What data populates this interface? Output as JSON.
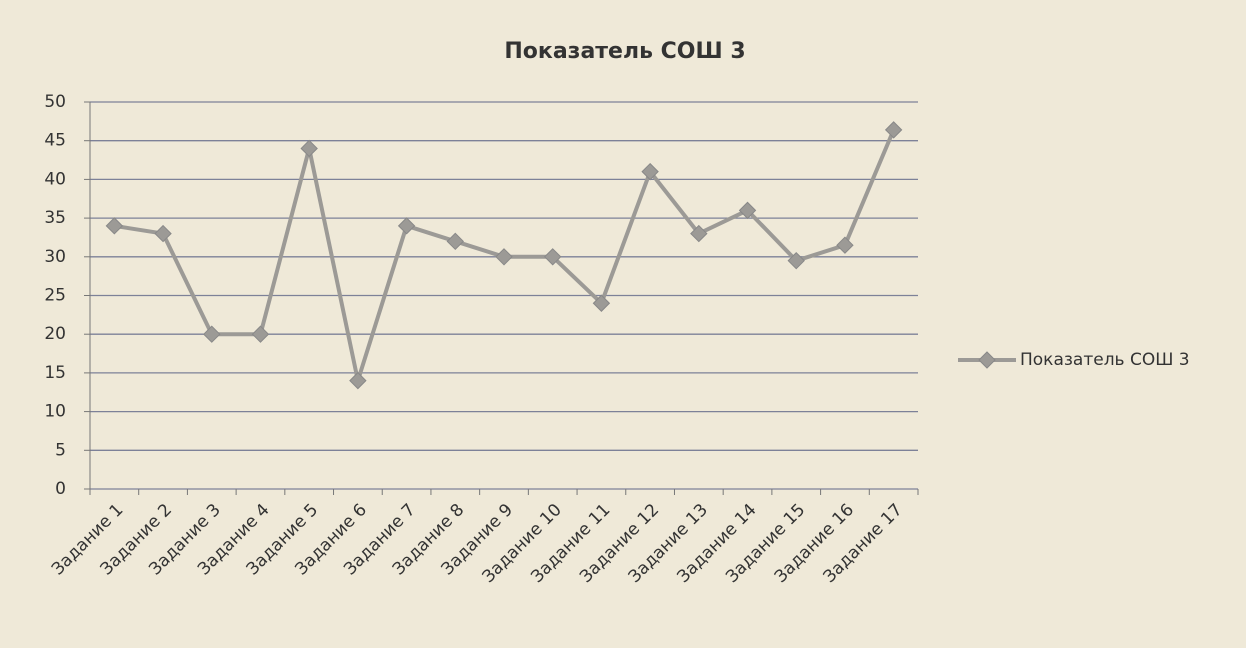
{
  "chart_data": {
    "type": "line",
    "title": "Показатель СОШ 3",
    "categories": [
      "Задание 1",
      "Задание 2",
      "Задание 3",
      "Задание 4",
      "Задание 5",
      "Задание 6",
      "Задание 7",
      "Задание 8",
      "Задание 9",
      "Задание 10",
      "Задание 11",
      "Задание 12",
      "Задание 13",
      "Задание 14",
      "Задание 15",
      "Задание 16",
      "Задание 17"
    ],
    "series": [
      {
        "name": "Показатель СОШ 3",
        "color": "#9c9a96",
        "values": [
          34,
          33,
          20,
          20,
          44,
          14,
          34,
          32,
          30,
          30,
          24,
          41,
          33,
          36,
          29.5,
          31.5,
          46.4
        ]
      }
    ],
    "ylim": [
      0,
      50
    ],
    "yticks": [
      0,
      5,
      10,
      15,
      20,
      25,
      30,
      35,
      40,
      45,
      50
    ],
    "grid": true,
    "legend": "right"
  }
}
